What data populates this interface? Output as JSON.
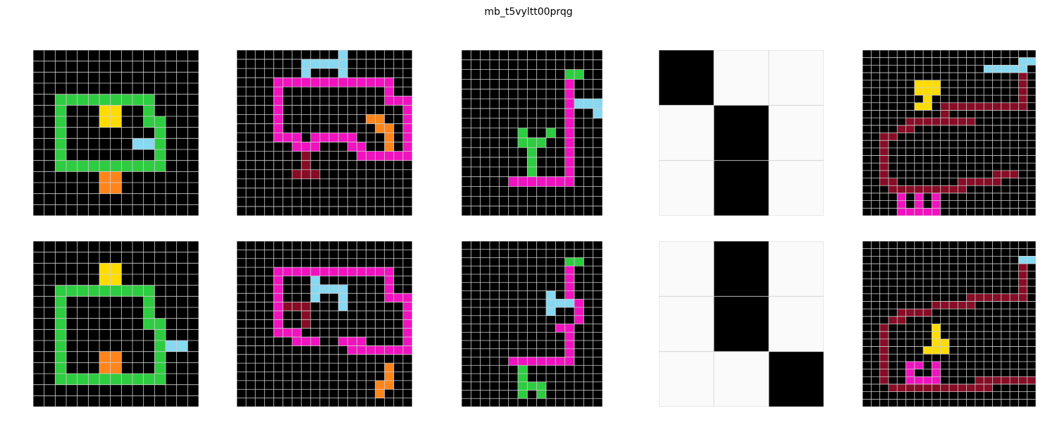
{
  "title": "mb_t5vyltt00prqg",
  "colors": {
    "0": "#000000",
    "1": "#fafafa",
    "3": "#2ecc40",
    "4": "#ffdc00",
    "6": "#f012be",
    "7": "#ff851b",
    "8": "#87d8f1",
    "9": "#870c25"
  },
  "grid_line_color": "#d0d0d0",
  "panels": [
    {
      "row": 0,
      "col": 0,
      "rows": [
        "000000000000000",
        "000000000000000",
        "000000000000000",
        "000000000000000",
        "003333333330000",
        "003000440030000",
        "003000440033000",
        "003000000003000",
        "003000000883000",
        "003000000003000",
        "003333333333000",
        "000000770000000",
        "000000770000000",
        "000000000000000",
        "000000000000000"
      ]
    },
    {
      "row": 0,
      "col": 1,
      "rows": [
        "0000000000080000000",
        "0000000888880000000",
        "0000000800080000000",
        "0000666666666666600",
        "0000600000000000600",
        "0000600000000000666",
        "0000600000000000006",
        "0000600000000077006",
        "0000600000000007706",
        "0000666066666000706",
        "0000006660006600706",
        "0000000900000666666",
        "0000000900000000000",
        "0000009990000000000",
        "0000000000000000000",
        "0000000000000000000",
        "0000000000000000000",
        "0000000000000000000"
      ]
    },
    {
      "row": 0,
      "col": 2,
      "rows": [
        "000000000000000",
        "000000000000000",
        "000000000003300",
        "000000000006000",
        "000000000006000",
        "000000000006888",
        "000000000006008",
        "000000000006000",
        "000000300306000",
        "000000333006000",
        "000000030006000",
        "000000030006000",
        "000000030006000",
        "000006666666000",
        "000000000000000",
        "000000000000000",
        "000000000000000"
      ]
    },
    {
      "row": 0,
      "col": 3,
      "rows": [
        "011",
        "101",
        "101"
      ]
    },
    {
      "row": 0,
      "col": 4,
      "rows": [
        "00000000000000000000",
        "00000000000000000088",
        "00000000000000888880",
        "00000000000000000090",
        "00000044400000000090",
        "00000044400000000090",
        "00000004000000000090",
        "00000044099999999990",
        "00000000090000000000",
        "00000999999990000000",
        "00009900000000000000",
        "00990000000000000000",
        "00900000000000000000",
        "00900000000000000000",
        "00900000000000000000",
        "00900000000000000000",
        "00900000000000099900",
        "00990000000999990000",
        "00099999999900000000",
        "00006060600000000000",
        "00006060600000000000",
        "00006666600000000000"
      ]
    },
    {
      "row": 1,
      "col": 0,
      "rows": [
        "000000000000000",
        "000000000000000",
        "000000440000000",
        "000000440000000",
        "003333333330000",
        "003000000030000",
        "003000000030000",
        "003000000033000",
        "003000000003000",
        "003000000003880",
        "003000770003000",
        "003000770003000",
        "003333333333000",
        "000000000000000",
        "000000000000000"
      ]
    },
    {
      "row": 1,
      "col": 1,
      "rows": [
        "0000000000000000000",
        "0000000000000000000",
        "0000000000000000000",
        "0000666666666666600",
        "0000600080000000600",
        "0000600088880000600",
        "0000600080080000666",
        "0000699900080000006",
        "0000600900000000006",
        "0000600900000000006",
        "0000666000000000006",
        "0000006660066600006",
        "0000000000006666666",
        "0000000000000000000",
        "0000000000000000700",
        "0000000000000000700",
        "0000000000000007700",
        "0000000000000007000",
        "0000000000000000000"
      ]
    },
    {
      "row": 1,
      "col": 2,
      "rows": [
        "000000000000000",
        "000000000000000",
        "000000000003300",
        "000000000006000",
        "000000000006000",
        "000000000006000",
        "000000000806000",
        "000000000888600",
        "000000000800600",
        "000000000000600",
        "000000000066000",
        "000000000006000",
        "000000000006000",
        "000000000006000",
        "000006666666000",
        "000000300000000",
        "000000300000000",
        "000000333000000",
        "000000303000000",
        "000000000000000"
      ]
    },
    {
      "row": 1,
      "col": 3,
      "rows": [
        "101",
        "101",
        "110"
      ]
    },
    {
      "row": 1,
      "col": 4,
      "rows": [
        "00000000000000000000",
        "00000000000000000000",
        "00000000000000000088",
        "00000000000000000090",
        "00000000000000000090",
        "00000000000000000090",
        "00000000000000000090",
        "00000000000099999990",
        "00000000999990000000",
        "00009999000000000000",
        "00099000000000000000",
        "00900000400000000000",
        "00900000400000000000",
        "00900000440000000000",
        "00900004440000000000",
        "00900000000000000000",
        "00900660600000000000",
        "00900600600000000000",
        "00900666600009999999",
        "00099999999999900000",
        "00000000000000000000",
        "00000000000000000000"
      ]
    }
  ]
}
